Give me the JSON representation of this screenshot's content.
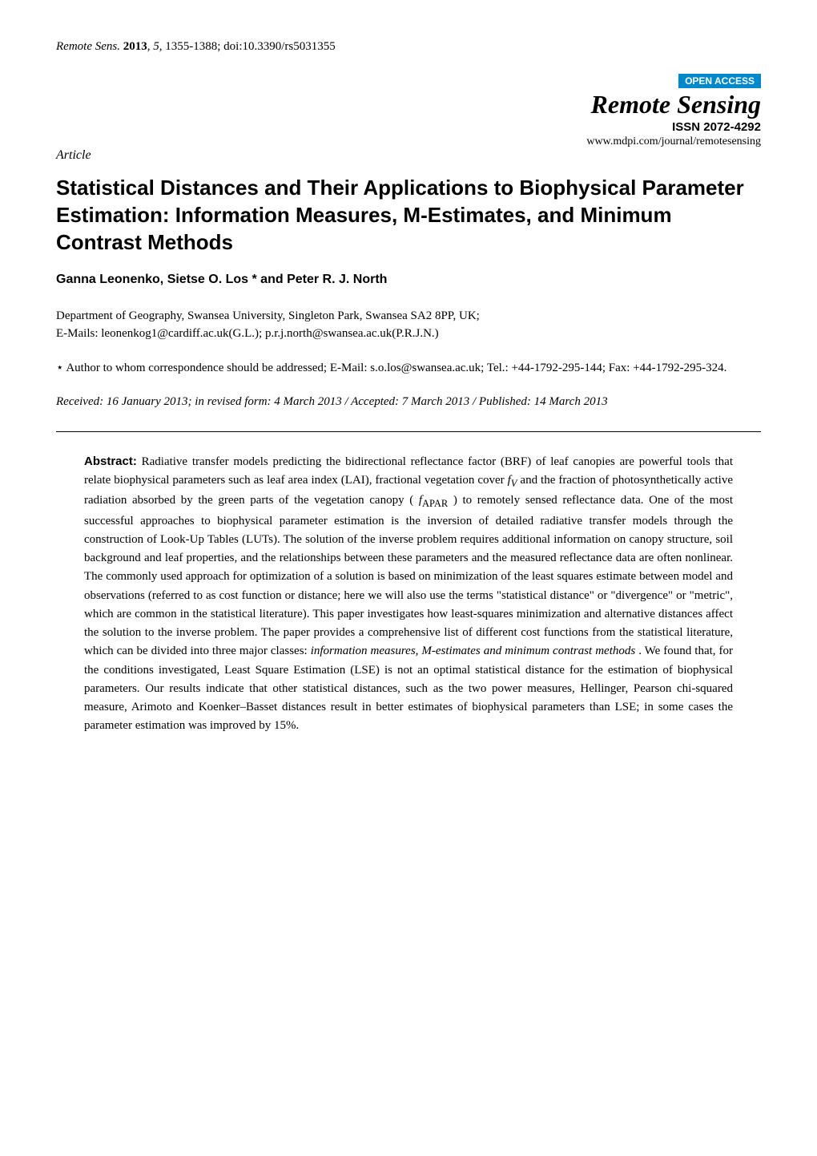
{
  "header": {
    "citation_prefix": "Remote Sens.",
    "year": "2013",
    "volume": "5",
    "pages": "1355-1388",
    "doi": "doi:10.3390/rs5031355",
    "open_access": "OPEN ACCESS",
    "journal_name": "Remote Sensing",
    "issn": "ISSN 2072-4292",
    "url": "www.mdpi.com/journal/remotesensing"
  },
  "article": {
    "type": "Article",
    "title": "Statistical Distances and Their Applications to Biophysical Parameter Estimation: Information Measures, M-Estimates, and Minimum Contrast Methods",
    "authors": "Ganna Leonenko, Sietse O. Los * and Peter R. J. North",
    "affiliation": "Department of Geography, Swansea University, Singleton Park, Swansea SA2 8PP, UK;",
    "emails": "E-Mails: leonenkog1@cardiff.ac.uk(G.L.); p.r.j.north@swansea.ac.uk(P.R.J.N.)",
    "correspondence_star": "⋆",
    "correspondence": "Author to whom correspondence should be addressed; E-Mail: s.o.los@swansea.ac.uk; Tel.: +44-1792-295-144; Fax: +44-1792-295-324.",
    "dates": "Received: 16 January 2013; in revised form: 4 March 2013 / Accepted: 7 March 2013 / Published: 14 March 2013"
  },
  "abstract": {
    "label": "Abstract:",
    "p1a": "Radiative transfer models predicting the bidirectional reflectance factor (BRF) of leaf canopies are powerful tools that relate biophysical parameters such as leaf area index (LAI), fractional vegetation cover ",
    "fv": "f",
    "fv_sub": "V",
    "p1b": " and the fraction of photosynthetically active radiation absorbed by the green parts of the vegetation canopy (",
    "fapar": "f",
    "fapar_sub": "APAR",
    "p1c": ") to remotely sensed reflectance data. One of the most successful approaches to biophysical parameter estimation is the inversion of detailed radiative transfer models through the construction of Look-Up Tables (LUTs). The solution of the inverse problem requires additional information on canopy structure, soil background and leaf properties, and the relationships between these parameters and the measured reflectance data are often nonlinear. The commonly used approach for optimization of a solution is based on minimization of the least squares estimate between model and observations (referred to as cost function or distance; here we will also use the terms \"statistical distance\" or \"divergence\" or \"metric\", which are common in the statistical literature). This paper investigates how least-squares minimization and alternative distances affect the solution to the inverse problem. The paper provides a comprehensive list of different cost functions from the statistical literature, which can be divided into three major classes: ",
    "classes_ital": "information measures, M-estimates and minimum contrast methods",
    "p1d": ". We found that, for the conditions investigated, Least Square Estimation (LSE) is not an optimal statistical distance for the estimation of biophysical parameters. Our results indicate that other statistical distances, such as the two power measures, Hellinger, Pearson chi-squared measure, Arimoto and Koenker–Basset distances result in better estimates of biophysical parameters than LSE; in some cases the parameter estimation was improved by 15%."
  },
  "colors": {
    "badge_bg": "#0088cc",
    "badge_text": "#ffffff",
    "text": "#000000",
    "bg": "#ffffff"
  },
  "typography": {
    "title_fontsize": 26,
    "body_fontsize": 15,
    "journal_fontsize": 32
  }
}
